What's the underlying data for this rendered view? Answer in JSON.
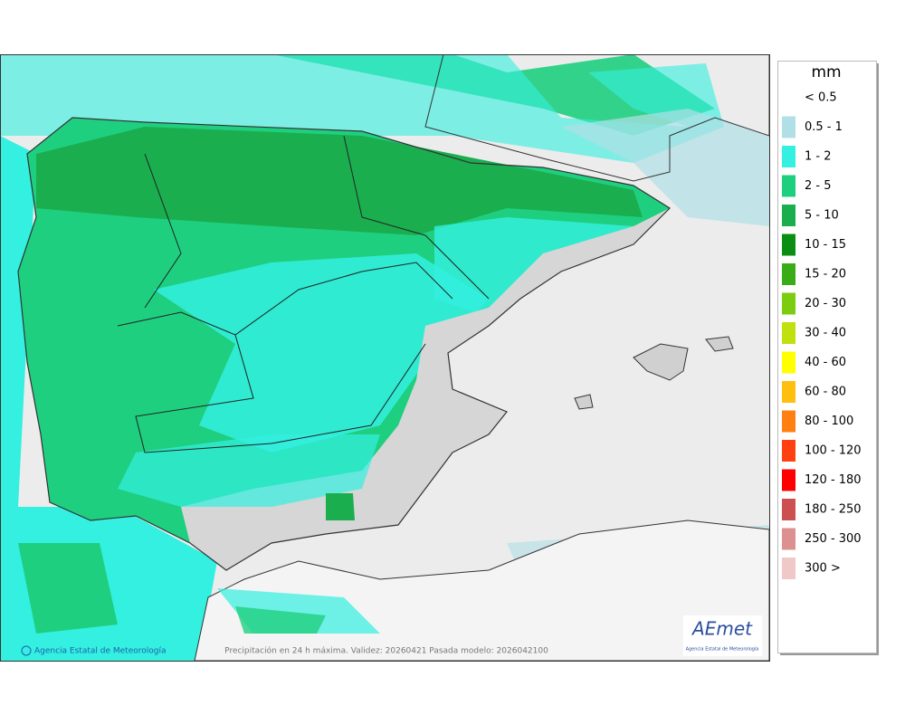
{
  "map": {
    "footer_left": "Agencia Estatal de Meteorología",
    "footer_center": "Precipitación en 24 h máxima. Validez: 20260421 Pasada modelo: 2026042100",
    "logo_text": "AEmet",
    "logo_subtitle": "Agencia Estatal de Meteorología"
  },
  "legend": {
    "title": "mm",
    "items": [
      {
        "label": "< 0.5",
        "color": "#ffffff"
      },
      {
        "label": "0.5 - 1",
        "color": "#b0e0e6"
      },
      {
        "label": "1 - 2",
        "color": "#33f0e0"
      },
      {
        "label": "2 - 5",
        "color": "#1fcf80"
      },
      {
        "label": "5 - 10",
        "color": "#1aae4f"
      },
      {
        "label": "10 - 15",
        "color": "#0a8f12"
      },
      {
        "label": "15 - 20",
        "color": "#3aac18"
      },
      {
        "label": "20 - 30",
        "color": "#7ccd10"
      },
      {
        "label": "30 - 40",
        "color": "#c0e010"
      },
      {
        "label": "40 - 60",
        "color": "#ffff00"
      },
      {
        "label": "60 - 80",
        "color": "#ffbf10"
      },
      {
        "label": "80 - 100",
        "color": "#ff8010"
      },
      {
        "label": "100 - 120",
        "color": "#ff4010"
      },
      {
        "label": "120 - 180",
        "color": "#ff0000"
      },
      {
        "label": "180 - 250",
        "color": "#cc5050"
      },
      {
        "label": "250 - 300",
        "color": "#dd9090"
      },
      {
        "label": "300 >",
        "color": "#f0c8c8"
      }
    ]
  }
}
